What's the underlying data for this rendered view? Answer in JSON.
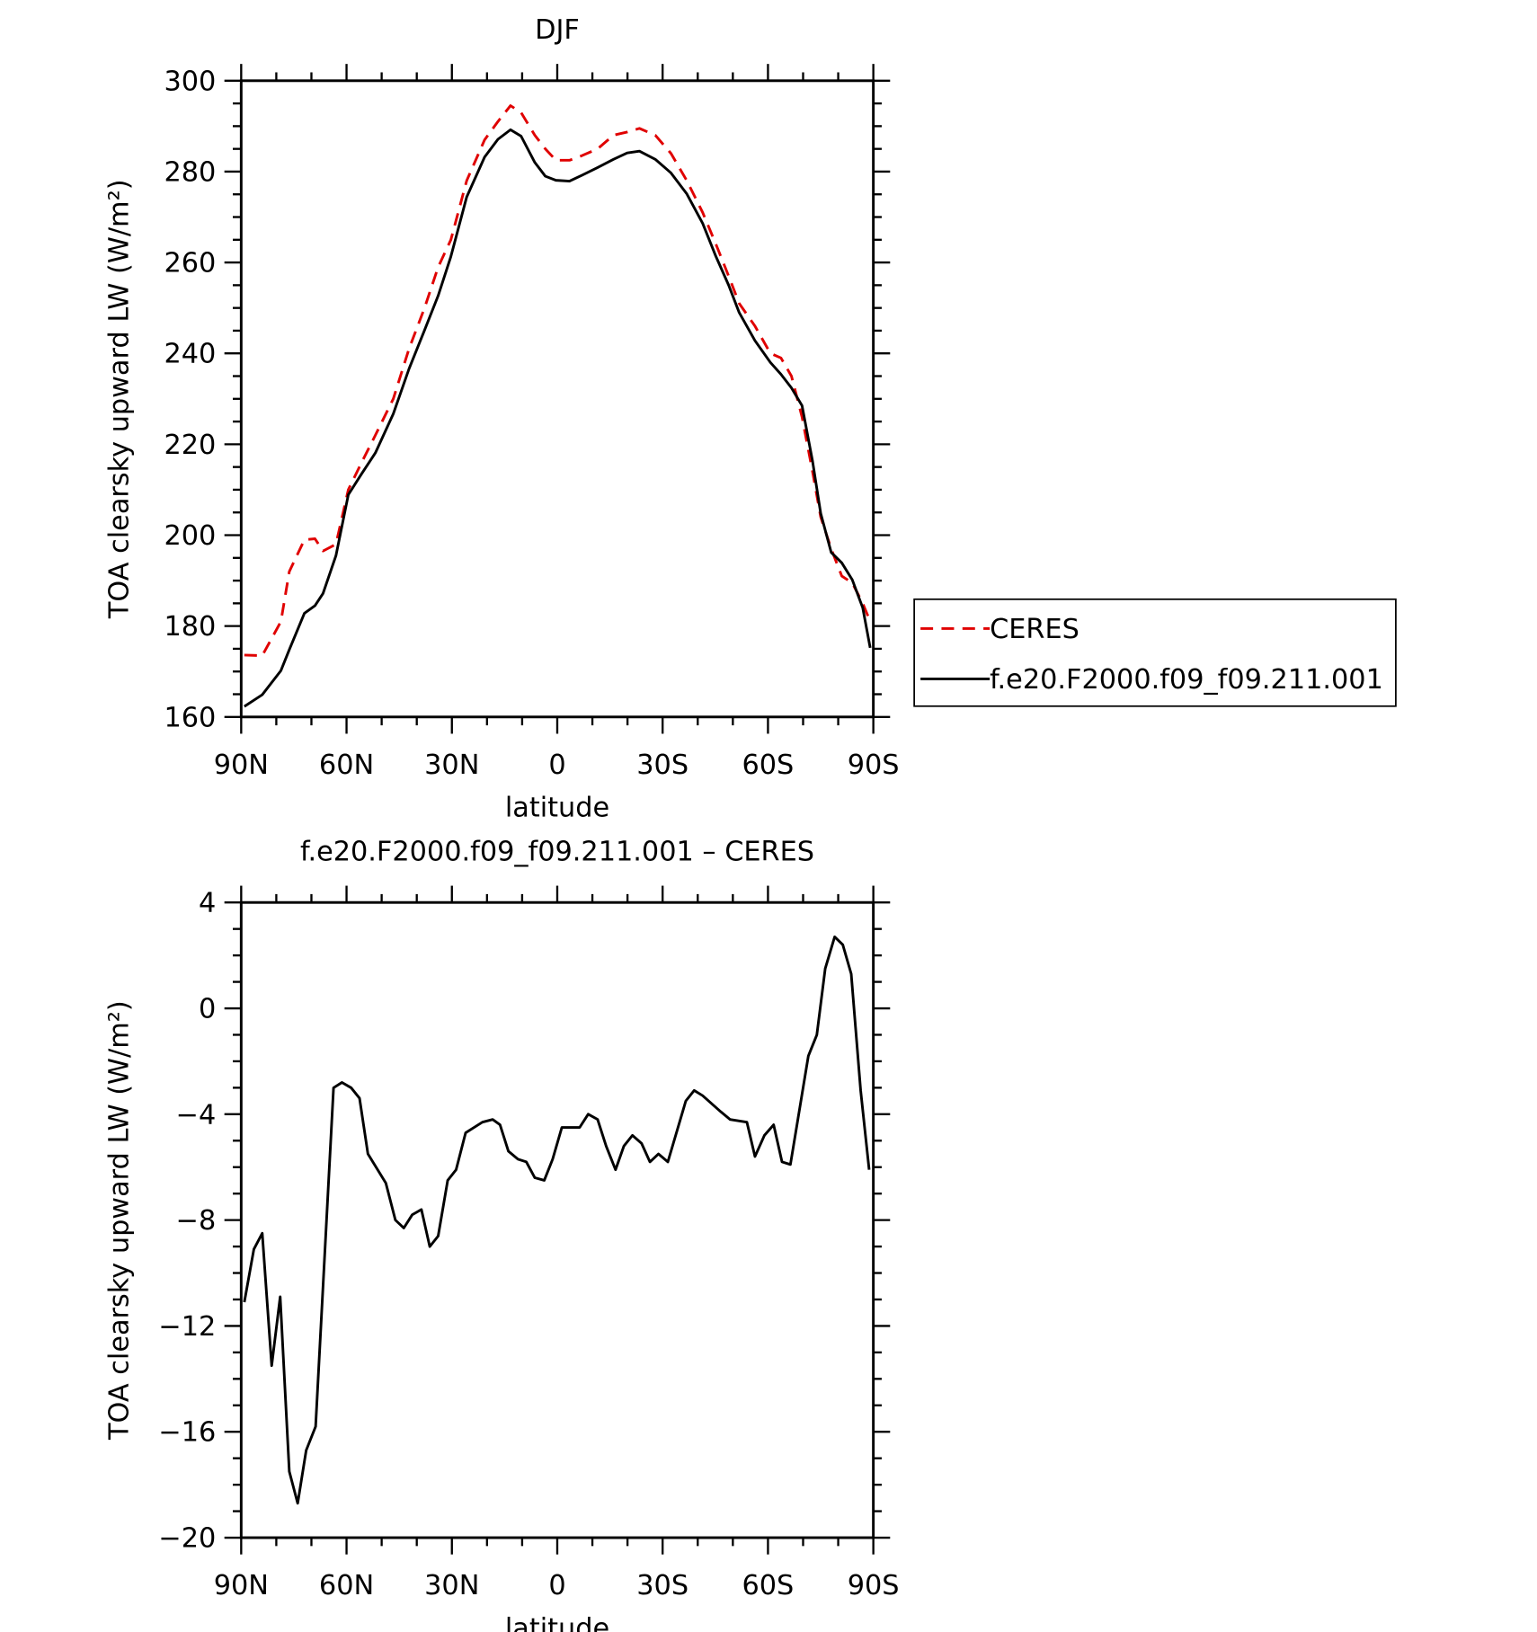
{
  "chart_data": [
    {
      "type": "line",
      "title": "DJF",
      "x_label": "latitude",
      "y_label": "TOA clearsky upward LW (W/m²)",
      "xlim": [
        90,
        -90
      ],
      "xticks": [
        {
          "value": 90,
          "label": "90N"
        },
        {
          "value": 60,
          "label": "60N"
        },
        {
          "value": 30,
          "label": "30N"
        },
        0,
        {
          "value": -30,
          "label": "30S"
        },
        {
          "value": -60,
          "label": "60S"
        },
        {
          "value": -90,
          "label": "90S"
        }
      ],
      "ylim": [
        160,
        300
      ],
      "yticks": [
        160,
        180,
        200,
        220,
        240,
        260,
        280,
        300
      ],
      "legend": "right",
      "x": [
        89.1,
        84,
        78.7,
        76.3,
        72,
        69,
        66.7,
        63,
        59.5,
        55.7,
        51.8,
        46.7,
        42.2,
        37.8,
        33.9,
        30.3,
        25.8,
        20.7,
        16.9,
        13.3,
        10.3,
        6.4,
        3.4,
        0.4,
        -3.5,
        -7,
        -11.5,
        -16,
        -19.9,
        -23.4,
        -27.9,
        -32.4,
        -36.9,
        -41.4,
        -45.2,
        -48.8,
        -51.8,
        -56.3,
        -60.7,
        -63.7,
        -66.7,
        -69.7,
        -72.7,
        -75,
        -78,
        -81,
        -84,
        -87,
        -89.1
      ],
      "series": [
        {
          "name": "CERES",
          "color": "#e00000",
          "dash": true,
          "values": [
            173.6,
            173.5,
            181,
            192,
            199,
            199.2,
            196.5,
            198,
            210,
            216,
            222,
            230,
            241,
            250,
            259,
            265,
            278,
            287,
            291,
            294.5,
            293,
            288,
            285,
            282.5,
            282.5,
            283.5,
            285,
            288,
            288.7,
            289.5,
            288,
            284,
            278,
            271,
            264,
            257,
            251,
            246,
            240,
            239,
            235,
            226,
            214,
            204,
            197,
            191,
            189.5,
            185,
            181
          ]
        },
        {
          "name": "f.e20.F2000.f09_f09.211.001",
          "color": "#000000",
          "dash": false,
          "values": [
            162.3,
            164.9,
            170.2,
            174.8,
            182.8,
            184.5,
            187.2,
            195.5,
            208.9,
            213.5,
            218.1,
            226.7,
            236.6,
            245.1,
            252.7,
            261.3,
            274.4,
            283.2,
            287.1,
            289.2,
            287.8,
            282,
            279,
            278.1,
            277.9,
            279.2,
            280.9,
            282.7,
            284.1,
            284.5,
            282.7,
            279.7,
            275.1,
            268.6,
            261.3,
            255,
            249,
            242.8,
            238,
            235.4,
            232.4,
            228.5,
            216.3,
            204.8,
            196.2,
            193.9,
            190.2,
            184,
            175.2
          ]
        }
      ]
    },
    {
      "type": "line",
      "title": "f.e20.F2000.f09_f09.211.001 – CERES",
      "x_label": "latitude",
      "y_label": "TOA clearsky upward LW (W/m²)",
      "xlim": [
        90,
        -90
      ],
      "xticks": [
        {
          "value": 90,
          "label": "90N"
        },
        {
          "value": 60,
          "label": "60N"
        },
        {
          "value": 30,
          "label": "30N"
        },
        0,
        {
          "value": -30,
          "label": "30S"
        },
        {
          "value": -60,
          "label": "60S"
        },
        {
          "value": -90,
          "label": "90S"
        }
      ],
      "ylim": [
        -20,
        4
      ],
      "yticks": [
        {
          "value": -20,
          "label": "−20"
        },
        {
          "value": -16,
          "label": "−16"
        },
        {
          "value": -12,
          "label": "−12"
        },
        {
          "value": -8,
          "label": "−8"
        },
        {
          "value": -4,
          "label": "−4"
        },
        0,
        4
      ],
      "color": "#000000",
      "x": [
        89.1,
        86.4,
        84,
        81.3,
        78.9,
        76.3,
        73.9,
        71.5,
        68.8,
        63.7,
        61.3,
        58.7,
        56.3,
        53.9,
        48.8,
        46.1,
        43.7,
        41.3,
        38.7,
        36.3,
        33.9,
        31.2,
        28.8,
        26.1,
        21.3,
        18.4,
        16.3,
        13.9,
        11.2,
        8.8,
        6.4,
        3.7,
        1.3,
        -1.3,
        -6.4,
        -8.8,
        -11.5,
        -13.9,
        -16.6,
        -19,
        -21.4,
        -24,
        -26.4,
        -28.8,
        -31.5,
        -36.6,
        -39,
        -41.4,
        -46.5,
        -49.2,
        -54,
        -56.3,
        -59,
        -61.6,
        -64,
        -66.4,
        -71.5,
        -73.9,
        -76.3,
        -79,
        -81.3,
        -83.7,
        -86.4,
        -88.8
      ],
      "values": [
        -11.1,
        -9.1,
        -8.5,
        -13.5,
        -10.9,
        -17.5,
        -18.7,
        -16.7,
        -15.8,
        -3.0,
        -2.8,
        -3.0,
        -3.4,
        -5.5,
        -6.6,
        -8.0,
        -8.3,
        -7.8,
        -7.6,
        -9.0,
        -8.6,
        -6.5,
        -6.1,
        -4.7,
        -4.3,
        -4.2,
        -4.4,
        -5.4,
        -5.7,
        -5.8,
        -6.4,
        -6.5,
        -5.7,
        -4.5,
        -4.5,
        -4.0,
        -4.2,
        -5.2,
        -6.1,
        -5.2,
        -4.8,
        -5.1,
        -5.8,
        -5.5,
        -5.8,
        -3.5,
        -3.1,
        -3.3,
        -3.9,
        -4.2,
        -4.3,
        -5.6,
        -4.8,
        -4.4,
        -5.8,
        -5.9,
        -1.8,
        -1.0,
        1.5,
        2.7,
        2.4,
        1.3,
        -3.1,
        -6.1
      ]
    }
  ]
}
